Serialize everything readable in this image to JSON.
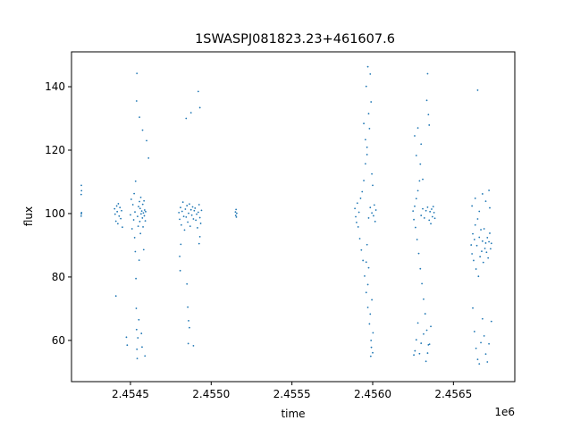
{
  "chart_data": {
    "type": "scatter",
    "title": "1SWASPJ081823.23+461607.6",
    "xlabel": "time",
    "ylabel": "flux",
    "x_offset_label": "1e6",
    "xlim": [
      2454135,
      2456880
    ],
    "ylim": [
      47,
      151
    ],
    "x_ticks": [
      2454500,
      2455000,
      2455500,
      2456000,
      2456500
    ],
    "x_tick_labels": [
      "2.4545",
      "2.4550",
      "2.4555",
      "2.4560",
      "2.4565"
    ],
    "y_ticks": [
      60,
      80,
      100,
      120,
      140
    ],
    "y_tick_labels": [
      "60",
      "80",
      "100",
      "120",
      "140"
    ],
    "grid": false,
    "legend": "none",
    "marker_color": "#1f77b4",
    "series": [
      {
        "points": [
          [
            2454195,
            99.2
          ],
          [
            2454196,
            99.9
          ],
          [
            2454197,
            107.2
          ],
          [
            2454195,
            106.0
          ],
          [
            2454196,
            108.9
          ],
          [
            2454197,
            100.3
          ],
          [
            2454402,
            101.5
          ],
          [
            2454405,
            99.8
          ],
          [
            2454410,
            97.6
          ],
          [
            2454415,
            102.4
          ],
          [
            2454418,
            100.6
          ],
          [
            2454422,
            96.8
          ],
          [
            2454425,
            103.1
          ],
          [
            2454430,
            99.2
          ],
          [
            2454435,
            101.9
          ],
          [
            2454440,
            98.4
          ],
          [
            2454445,
            100.9
          ],
          [
            2454450,
            95.7
          ],
          [
            2454410,
            74.0
          ],
          [
            2454475,
            61.0
          ],
          [
            2454480,
            58.5
          ],
          [
            2454500,
            99.6
          ],
          [
            2454505,
            104.5
          ],
          [
            2454510,
            95.2
          ],
          [
            2454515,
            102.8
          ],
          [
            2454520,
            98.0
          ],
          [
            2454523,
            106.3
          ],
          [
            2454526,
            92.4
          ],
          [
            2454528,
            100.5
          ],
          [
            2454530,
            88.0
          ],
          [
            2454532,
            110.2
          ],
          [
            2454534,
            79.5
          ],
          [
            2454536,
            70.1
          ],
          [
            2454538,
            63.4
          ],
          [
            2454540,
            57.2
          ],
          [
            2454542,
            54.3
          ],
          [
            2454544,
            99.1
          ],
          [
            2454546,
            60.8
          ],
          [
            2454548,
            96.0
          ],
          [
            2454550,
            102.2
          ],
          [
            2454552,
            66.5
          ],
          [
            2454554,
            85.3
          ],
          [
            2454556,
            103.8
          ],
          [
            2454558,
            97.5
          ],
          [
            2454560,
            101.6
          ],
          [
            2454562,
            93.7
          ],
          [
            2454564,
            105.1
          ],
          [
            2454566,
            99.9
          ],
          [
            2454568,
            62.2
          ],
          [
            2454570,
            100.8
          ],
          [
            2454572,
            57.9
          ],
          [
            2454574,
            98.6
          ],
          [
            2454576,
            102.9
          ],
          [
            2454578,
            95.8
          ],
          [
            2454580,
            100.2
          ],
          [
            2454582,
            88.6
          ],
          [
            2454584,
            104.0
          ],
          [
            2454586,
            99.3
          ],
          [
            2454588,
            101.1
          ],
          [
            2454590,
            55.1
          ],
          [
            2454592,
            97.7
          ],
          [
            2454594,
            100.6
          ],
          [
            2454538,
            135.5
          ],
          [
            2454540,
            144.2
          ],
          [
            2454556,
            130.4
          ],
          [
            2454575,
            126.3
          ],
          [
            2454600,
            123.0
          ],
          [
            2454612,
            117.5
          ],
          [
            2454800,
            100.3
          ],
          [
            2454805,
            98.2
          ],
          [
            2454810,
            101.9
          ],
          [
            2454815,
            96.4
          ],
          [
            2454820,
            100.7
          ],
          [
            2454825,
            103.6
          ],
          [
            2454830,
            99.1
          ],
          [
            2454835,
            94.8
          ],
          [
            2454840,
            101.4
          ],
          [
            2454845,
            98.9
          ],
          [
            2454850,
            102.5
          ],
          [
            2454855,
            97.3
          ],
          [
            2454860,
            100.1
          ],
          [
            2454865,
            103.0
          ],
          [
            2454870,
            96.0
          ],
          [
            2454875,
            101.2
          ],
          [
            2454880,
            99.5
          ],
          [
            2454885,
            102.1
          ],
          [
            2454890,
            98.3
          ],
          [
            2454895,
            100.9
          ],
          [
            2454900,
            101.7
          ],
          [
            2454905,
            97.9
          ],
          [
            2454910,
            99.8
          ],
          [
            2454915,
            95.5
          ],
          [
            2454920,
            100.4
          ],
          [
            2454925,
            102.8
          ],
          [
            2454930,
            98.7
          ],
          [
            2454935,
            96.9
          ],
          [
            2454940,
            101.0
          ],
          [
            2454805,
            86.5
          ],
          [
            2454808,
            82.0
          ],
          [
            2454812,
            90.3
          ],
          [
            2454850,
            77.8
          ],
          [
            2454855,
            70.5
          ],
          [
            2454860,
            66.2
          ],
          [
            2454865,
            64.0
          ],
          [
            2454858,
            59.0
          ],
          [
            2454890,
            58.3
          ],
          [
            2454925,
            90.5
          ],
          [
            2454930,
            92.7
          ],
          [
            2454845,
            130.0
          ],
          [
            2454875,
            131.8
          ],
          [
            2454920,
            138.5
          ],
          [
            2454930,
            133.4
          ],
          [
            2455150,
            100.5
          ],
          [
            2455152,
            99.4
          ],
          [
            2455154,
            101.3
          ],
          [
            2455156,
            98.9
          ],
          [
            2455158,
            100.1
          ],
          [
            2455890,
            101.6
          ],
          [
            2455895,
            99.0
          ],
          [
            2455900,
            97.2
          ],
          [
            2455905,
            103.3
          ],
          [
            2455910,
            95.8
          ],
          [
            2455915,
            100.4
          ],
          [
            2455920,
            92.1
          ],
          [
            2455925,
            104.8
          ],
          [
            2455930,
            88.5
          ],
          [
            2455935,
            106.9
          ],
          [
            2455940,
            85.2
          ],
          [
            2455945,
            110.4
          ],
          [
            2455950,
            80.3
          ],
          [
            2455955,
            115.7
          ],
          [
            2455960,
            75.1
          ],
          [
            2455965,
            120.9
          ],
          [
            2455970,
            70.4
          ],
          [
            2455975,
            98.6
          ],
          [
            2455980,
            65.2
          ],
          [
            2455985,
            101.9
          ],
          [
            2455990,
            60.0
          ],
          [
            2455995,
            100.2
          ],
          [
            2456000,
            56.1
          ],
          [
            2456005,
            99.3
          ],
          [
            2456010,
            102.7
          ],
          [
            2456015,
            97.5
          ],
          [
            2456020,
            101.1
          ],
          [
            2455988,
            55.0
          ],
          [
            2455992,
            57.8
          ],
          [
            2456002,
            62.4
          ],
          [
            2455960,
            140.1
          ],
          [
            2455970,
            146.3
          ],
          [
            2455975,
            131.5
          ],
          [
            2455980,
            126.8
          ],
          [
            2455985,
            144.0
          ],
          [
            2455990,
            135.2
          ],
          [
            2455945,
            128.4
          ],
          [
            2455955,
            123.3
          ],
          [
            2455965,
            118.6
          ],
          [
            2455995,
            112.5
          ],
          [
            2456000,
            108.9
          ],
          [
            2455960,
            84.7
          ],
          [
            2455965,
            90.2
          ],
          [
            2455970,
            77.6
          ],
          [
            2455975,
            82.9
          ],
          [
            2455985,
            68.3
          ],
          [
            2455995,
            72.8
          ],
          [
            2456250,
            100.8
          ],
          [
            2456255,
            98.1
          ],
          [
            2456260,
            102.3
          ],
          [
            2456265,
            95.6
          ],
          [
            2456270,
            104.7
          ],
          [
            2456275,
            91.8
          ],
          [
            2456280,
            107.2
          ],
          [
            2456285,
            87.4
          ],
          [
            2456290,
            110.3
          ],
          [
            2456295,
            82.6
          ],
          [
            2456300,
            99.4
          ],
          [
            2456305,
            77.9
          ],
          [
            2456310,
            101.5
          ],
          [
            2456315,
            73.0
          ],
          [
            2456320,
            98.6
          ],
          [
            2456325,
            68.4
          ],
          [
            2456330,
            100.9
          ],
          [
            2456335,
            63.2
          ],
          [
            2456340,
            102.0
          ],
          [
            2456345,
            58.6
          ],
          [
            2456350,
            97.9
          ],
          [
            2456355,
            100.6
          ],
          [
            2456360,
            96.8
          ],
          [
            2456365,
            101.4
          ],
          [
            2456370,
            99.0
          ],
          [
            2456375,
            102.2
          ],
          [
            2456380,
            100.3
          ],
          [
            2456385,
            98.5
          ],
          [
            2456255,
            55.4
          ],
          [
            2456262,
            56.7
          ],
          [
            2456270,
            60.2
          ],
          [
            2456280,
            65.5
          ],
          [
            2456290,
            55.8
          ],
          [
            2456300,
            59.1
          ],
          [
            2456315,
            62.0
          ],
          [
            2456330,
            53.4
          ],
          [
            2456340,
            56.0
          ],
          [
            2456352,
            58.8
          ],
          [
            2456360,
            64.4
          ],
          [
            2456260,
            124.5
          ],
          [
            2456270,
            118.3
          ],
          [
            2456280,
            127.0
          ],
          [
            2456295,
            115.6
          ],
          [
            2456300,
            121.9
          ],
          [
            2456310,
            110.8
          ],
          [
            2456340,
            144.1
          ],
          [
            2456335,
            135.7
          ],
          [
            2456345,
            131.2
          ],
          [
            2456350,
            127.9
          ],
          [
            2456610,
            90.1
          ],
          [
            2456615,
            87.3
          ],
          [
            2456620,
            93.6
          ],
          [
            2456625,
            85.2
          ],
          [
            2456630,
            91.8
          ],
          [
            2456635,
            96.4
          ],
          [
            2456640,
            82.5
          ],
          [
            2456645,
            89.9
          ],
          [
            2456650,
            98.3
          ],
          [
            2456655,
            80.2
          ],
          [
            2456660,
            92.5
          ],
          [
            2456665,
            86.4
          ],
          [
            2456670,
            94.9
          ],
          [
            2456675,
            88.1
          ],
          [
            2456680,
            91.3
          ],
          [
            2456685,
            84.6
          ],
          [
            2456690,
            95.2
          ],
          [
            2456695,
            89.0
          ],
          [
            2456700,
            90.7
          ],
          [
            2456705,
            87.8
          ],
          [
            2456710,
            92.4
          ],
          [
            2456715,
            86.0
          ],
          [
            2456720,
            91.1
          ],
          [
            2456725,
            93.8
          ],
          [
            2456730,
            88.9
          ],
          [
            2456735,
            90.6
          ],
          [
            2456620,
            70.2
          ],
          [
            2456630,
            62.8
          ],
          [
            2456640,
            57.5
          ],
          [
            2456650,
            54.0
          ],
          [
            2456660,
            52.6
          ],
          [
            2456670,
            59.3
          ],
          [
            2456680,
            66.8
          ],
          [
            2456690,
            61.4
          ],
          [
            2456700,
            55.7
          ],
          [
            2456710,
            53.2
          ],
          [
            2456720,
            58.9
          ],
          [
            2456735,
            66.0
          ],
          [
            2456615,
            102.4
          ],
          [
            2456635,
            104.8
          ],
          [
            2456660,
            100.7
          ],
          [
            2456680,
            106.2
          ],
          [
            2456700,
            103.9
          ],
          [
            2456720,
            107.3
          ],
          [
            2456725,
            101.8
          ],
          [
            2456650,
            138.9
          ]
        ]
      }
    ]
  }
}
